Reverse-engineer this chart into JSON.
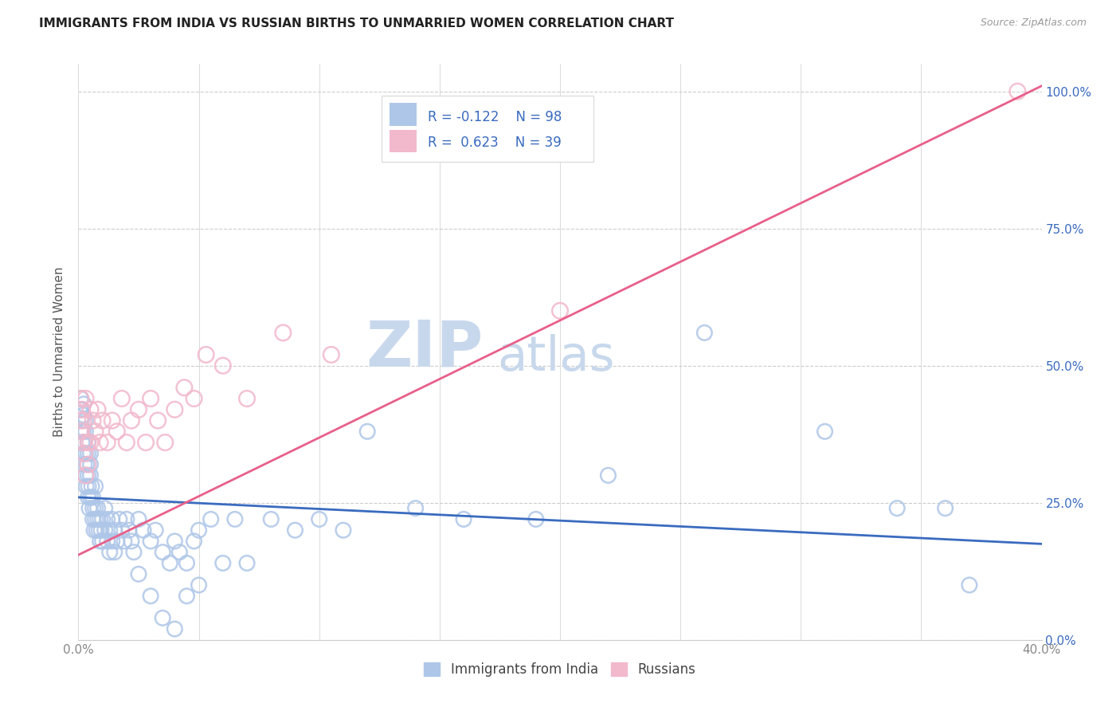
{
  "title": "IMMIGRANTS FROM INDIA VS RUSSIAN BIRTHS TO UNMARRIED WOMEN CORRELATION CHART",
  "source": "Source: ZipAtlas.com",
  "ylabel": "Births to Unmarried Women",
  "legend_india": "Immigrants from India",
  "legend_russia": "Russians",
  "r_india": "-0.122",
  "n_india": "98",
  "r_russia": "0.623",
  "n_russia": "39",
  "color_india": "#aec6e8",
  "color_russia": "#f2b8cc",
  "line_india": "#3a6bbf",
  "line_russia": "#e8608a",
  "color_r_text": "#3a6bbf",
  "color_n_text": "#e8608a",
  "background": "#ffffff",
  "india_x": [
    0.0008,
    0.001,
    0.001,
    0.0012,
    0.0015,
    0.0015,
    0.002,
    0.002,
    0.002,
    0.0022,
    0.0025,
    0.0025,
    0.003,
    0.003,
    0.003,
    0.003,
    0.0032,
    0.0035,
    0.004,
    0.004,
    0.004,
    0.004,
    0.0042,
    0.0045,
    0.005,
    0.005,
    0.005,
    0.005,
    0.0055,
    0.006,
    0.006,
    0.006,
    0.0065,
    0.007,
    0.007,
    0.007,
    0.0075,
    0.008,
    0.008,
    0.0085,
    0.009,
    0.009,
    0.0095,
    0.01,
    0.01,
    0.011,
    0.011,
    0.012,
    0.012,
    0.013,
    0.013,
    0.014,
    0.014,
    0.015,
    0.015,
    0.016,
    0.017,
    0.018,
    0.019,
    0.02,
    0.021,
    0.022,
    0.023,
    0.025,
    0.027,
    0.03,
    0.032,
    0.035,
    0.038,
    0.04,
    0.042,
    0.045,
    0.048,
    0.05,
    0.055,
    0.06,
    0.065,
    0.07,
    0.08,
    0.09,
    0.1,
    0.11,
    0.12,
    0.14,
    0.16,
    0.19,
    0.22,
    0.26,
    0.31,
    0.34,
    0.36,
    0.37,
    0.025,
    0.03,
    0.035,
    0.04,
    0.045,
    0.05
  ],
  "india_y": [
    0.42,
    0.38,
    0.44,
    0.4,
    0.36,
    0.42,
    0.34,
    0.38,
    0.41,
    0.43,
    0.32,
    0.36,
    0.3,
    0.34,
    0.38,
    0.4,
    0.28,
    0.32,
    0.26,
    0.3,
    0.34,
    0.36,
    0.28,
    0.24,
    0.26,
    0.3,
    0.32,
    0.34,
    0.28,
    0.24,
    0.22,
    0.26,
    0.2,
    0.24,
    0.22,
    0.28,
    0.2,
    0.24,
    0.22,
    0.2,
    0.18,
    0.22,
    0.2,
    0.22,
    0.18,
    0.2,
    0.24,
    0.18,
    0.22,
    0.2,
    0.16,
    0.18,
    0.22,
    0.16,
    0.2,
    0.18,
    0.22,
    0.2,
    0.18,
    0.22,
    0.2,
    0.18,
    0.16,
    0.22,
    0.2,
    0.18,
    0.2,
    0.16,
    0.14,
    0.18,
    0.16,
    0.14,
    0.18,
    0.2,
    0.22,
    0.14,
    0.22,
    0.14,
    0.22,
    0.2,
    0.22,
    0.2,
    0.38,
    0.24,
    0.22,
    0.22,
    0.3,
    0.56,
    0.38,
    0.24,
    0.24,
    0.1,
    0.12,
    0.08,
    0.04,
    0.02,
    0.08,
    0.1
  ],
  "russia_x": [
    0.0008,
    0.001,
    0.0012,
    0.0015,
    0.002,
    0.002,
    0.0025,
    0.003,
    0.003,
    0.004,
    0.004,
    0.005,
    0.005,
    0.006,
    0.007,
    0.008,
    0.009,
    0.01,
    0.012,
    0.014,
    0.016,
    0.018,
    0.02,
    0.022,
    0.025,
    0.028,
    0.03,
    0.033,
    0.036,
    0.04,
    0.044,
    0.048,
    0.053,
    0.06,
    0.07,
    0.085,
    0.105,
    0.2,
    0.39
  ],
  "russia_y": [
    0.4,
    0.44,
    0.38,
    0.42,
    0.36,
    0.4,
    0.34,
    0.44,
    0.3,
    0.36,
    0.32,
    0.42,
    0.36,
    0.4,
    0.38,
    0.42,
    0.36,
    0.4,
    0.36,
    0.4,
    0.38,
    0.44,
    0.36,
    0.4,
    0.42,
    0.36,
    0.44,
    0.4,
    0.36,
    0.42,
    0.46,
    0.44,
    0.52,
    0.5,
    0.44,
    0.56,
    0.52,
    0.6,
    1.0
  ],
  "xlim": [
    0.0,
    0.4
  ],
  "ylim": [
    0.0,
    1.05
  ],
  "india_line_x": [
    0.0,
    0.4
  ],
  "india_line_y": [
    0.26,
    0.175
  ],
  "russia_line_x": [
    0.0,
    0.4
  ],
  "russia_line_y": [
    0.155,
    1.01
  ],
  "watermark_zip": "ZIP",
  "watermark_atlas": "atlas",
  "watermark_color_zip": "#c8d8ec",
  "watermark_color_atlas": "#c8d8ec",
  "grid_color": "#cccccc",
  "tick_color": "#888888",
  "legend_box_color": "#dddddd"
}
